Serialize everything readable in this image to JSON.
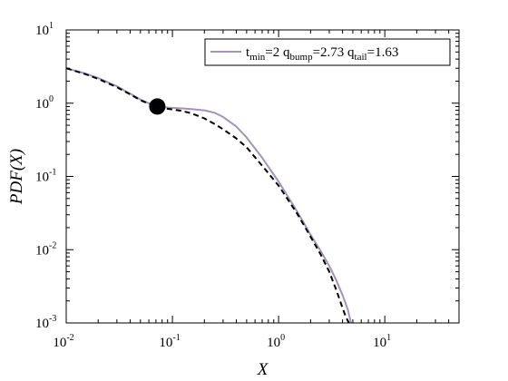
{
  "chart_data": {
    "type": "line",
    "xlabel": "X",
    "ylabel": "PDF(X)",
    "xscale": "log",
    "yscale": "log",
    "xlim": [
      0.01,
      50
    ],
    "ylim": [
      0.001,
      10
    ],
    "x_ticks": [
      {
        "base": "10",
        "exp": "-2"
      },
      {
        "base": "10",
        "exp": "-1"
      },
      {
        "base": "10",
        "exp": "0"
      },
      {
        "base": "10",
        "exp": "1"
      }
    ],
    "y_ticks": [
      {
        "base": "10",
        "exp": "-3"
      },
      {
        "base": "10",
        "exp": "-2"
      },
      {
        "base": "10",
        "exp": "-1"
      },
      {
        "base": "10",
        "exp": "0"
      },
      {
        "base": "10",
        "exp": "1"
      }
    ],
    "legend": {
      "position": "top-right",
      "parts": [
        {
          "text": "t",
          "sub": false
        },
        {
          "text": "min",
          "sub": true
        },
        {
          "text": "=2 q",
          "sub": false
        },
        {
          "text": "bump",
          "sub": true
        },
        {
          "text": "=2.73 q",
          "sub": false
        },
        {
          "text": "tail",
          "sub": true
        },
        {
          "text": "=1.63",
          "sub": false
        }
      ]
    },
    "series": [
      {
        "name": "t_min=2 q_bump=2.73 q_tail=1.63",
        "color": "#a393bd",
        "style": "solid",
        "x": [
          0.01,
          0.015,
          0.02,
          0.03,
          0.04,
          0.05,
          0.06,
          0.072,
          0.09,
          0.12,
          0.15,
          0.2,
          0.25,
          0.3,
          0.4,
          0.5,
          0.7,
          1.0,
          1.5,
          2.0,
          2.5,
          3.0,
          3.5,
          4.0,
          4.5,
          4.8
        ],
        "y": [
          3.0,
          2.55,
          2.2,
          1.7,
          1.35,
          1.12,
          1.0,
          0.9,
          0.87,
          0.85,
          0.83,
          0.8,
          0.74,
          0.65,
          0.48,
          0.34,
          0.18,
          0.085,
          0.033,
          0.016,
          0.0095,
          0.006,
          0.0038,
          0.0024,
          0.0015,
          0.001
        ]
      },
      {
        "name": "",
        "color": "#000000",
        "style": "dashed",
        "x": [
          0.01,
          0.015,
          0.02,
          0.03,
          0.04,
          0.05,
          0.06,
          0.072,
          0.09,
          0.12,
          0.15,
          0.2,
          0.25,
          0.3,
          0.4,
          0.5,
          0.7,
          1.0,
          1.5,
          2.0,
          2.5,
          3.0,
          3.5,
          4.0,
          4.3,
          4.6
        ],
        "y": [
          3.0,
          2.5,
          2.15,
          1.65,
          1.32,
          1.1,
          0.98,
          0.9,
          0.84,
          0.79,
          0.73,
          0.62,
          0.52,
          0.44,
          0.33,
          0.25,
          0.14,
          0.075,
          0.031,
          0.015,
          0.0085,
          0.005,
          0.0028,
          0.0016,
          0.0012,
          0.001
        ]
      }
    ],
    "marker": {
      "x": 0.072,
      "y": 0.9,
      "color": "#000000"
    },
    "grid": false
  }
}
